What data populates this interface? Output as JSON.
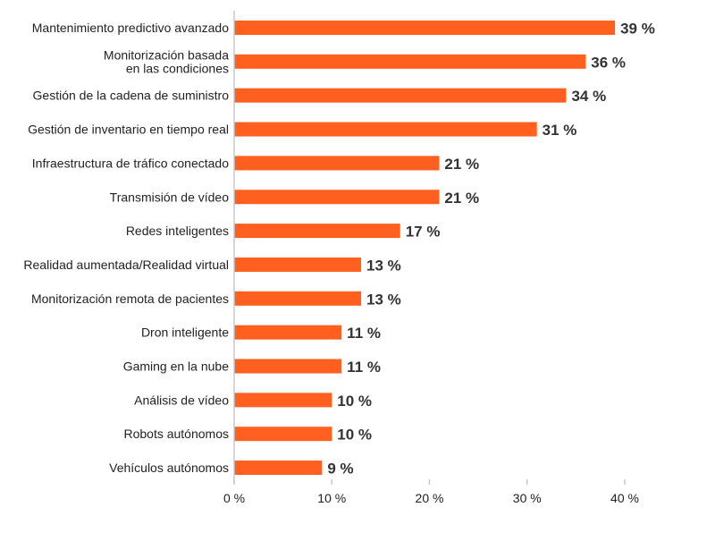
{
  "chart_data": {
    "type": "bar",
    "orientation": "horizontal",
    "title": "",
    "xlabel": "",
    "ylabel": "",
    "xlim": [
      0,
      40
    ],
    "grid": false,
    "bar_color": "#ff5f1f",
    "categories": [
      [
        "Mantenimiento predictivo avanzado"
      ],
      [
        "Monitorización basada",
        "en las condiciones"
      ],
      [
        "Gestión de la cadena de suministro"
      ],
      [
        "Gestión de inventario en tiempo real"
      ],
      [
        "Infraestructura de tráfico conectado"
      ],
      [
        "Transmisión de vídeo"
      ],
      [
        "Redes inteligentes"
      ],
      [
        "Realidad aumentada/Realidad virtual"
      ],
      [
        "Monitorización remota de pacientes"
      ],
      [
        "Dron inteligente"
      ],
      [
        "Gaming en la nube"
      ],
      [
        "Análisis de vídeo"
      ],
      [
        "Robots autónomos"
      ],
      [
        "Vehículos autónomos"
      ]
    ],
    "values": [
      39,
      36,
      34,
      31,
      21,
      21,
      17,
      13,
      13,
      11,
      11,
      10,
      10,
      9
    ],
    "data_labels": [
      "39 %",
      "36 %",
      "34 %",
      "31 %",
      "21 %",
      "21 %",
      "17 %",
      "13 %",
      "13 %",
      "11 %",
      "11 %",
      "10 %",
      "10 %",
      "9 %"
    ],
    "x_ticks": [
      0,
      10,
      20,
      30,
      40
    ],
    "x_tick_labels": [
      "0 %",
      "10 %",
      "20 %",
      "30 %",
      "40 %"
    ]
  }
}
